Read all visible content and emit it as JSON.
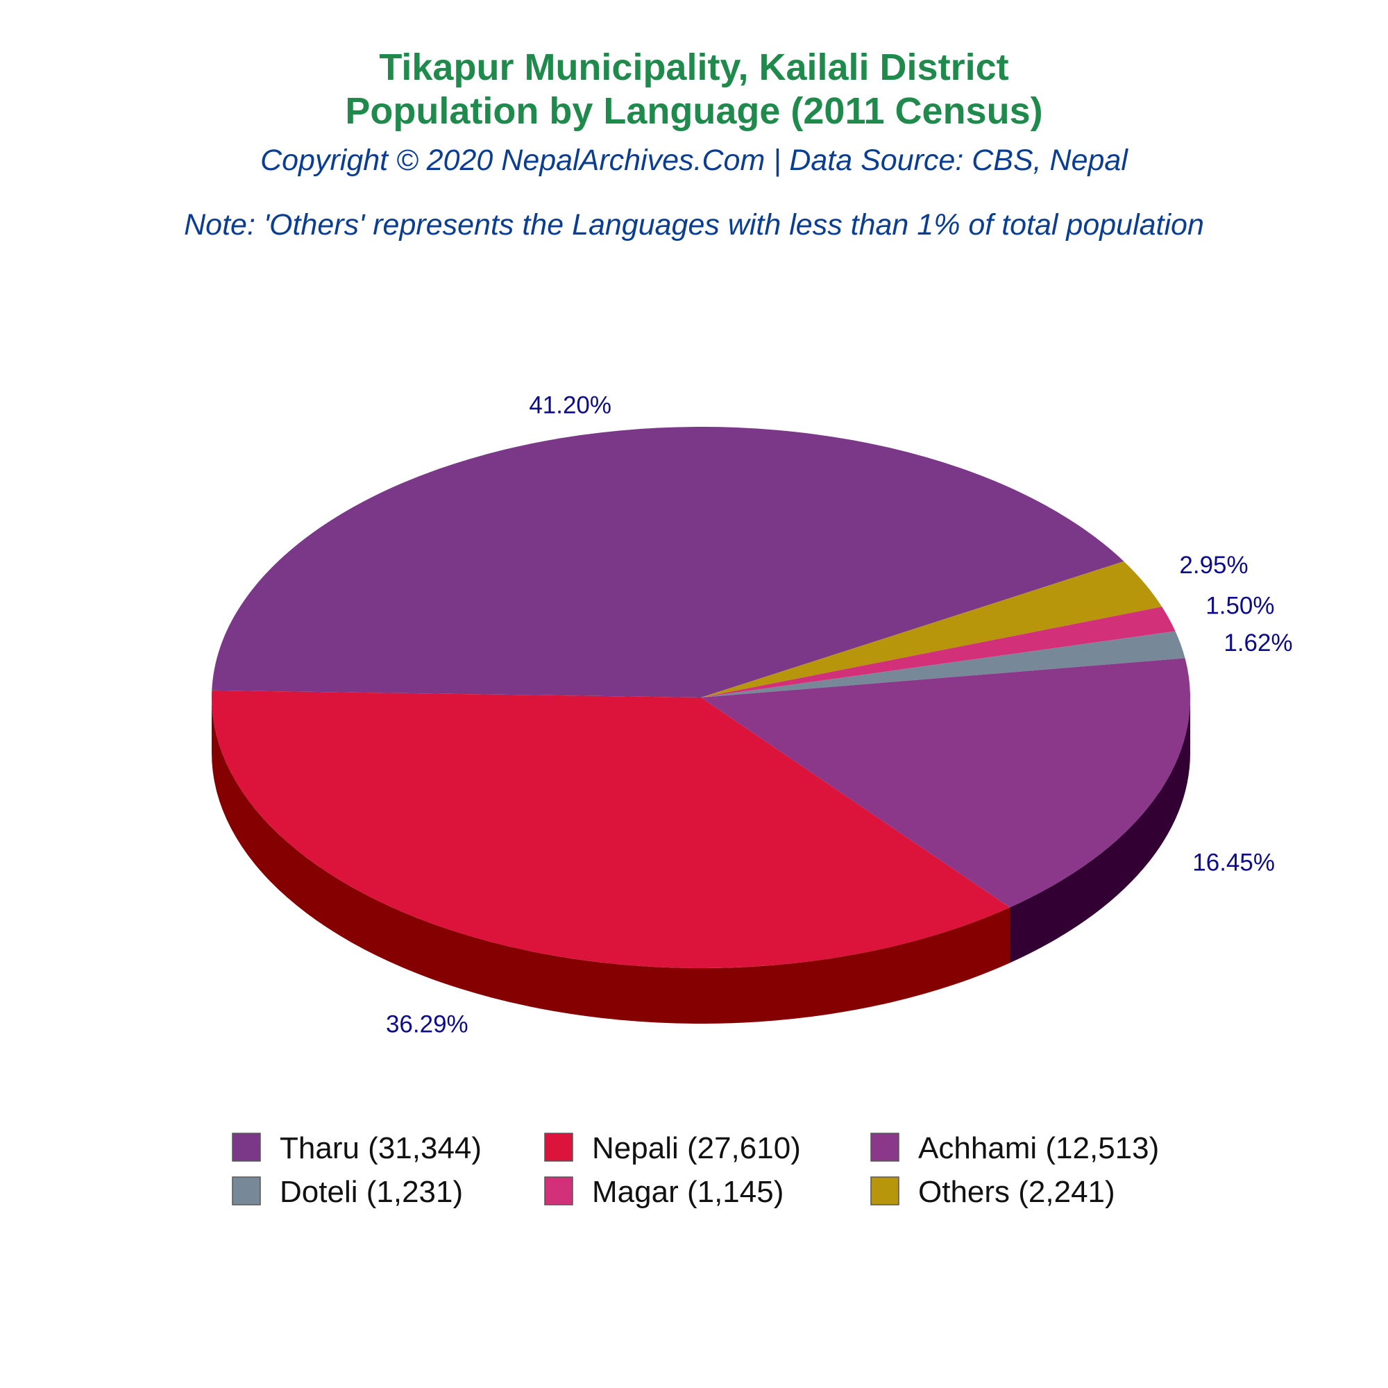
{
  "chart_data": {
    "type": "pie",
    "title": "Tikapur Municipality, Kailali District",
    "title_line2": "Population by Language (2011 Census)",
    "subtitle": "Copyright © 2020 NepalArchives.Com | Data Source: CBS, Nepal",
    "note": "Note: 'Others' represents the Languages with less than 1% of total population",
    "legend_position": "bottom",
    "slices": [
      {
        "label": "Tharu (31,344)",
        "value": 31344,
        "percent_label": "41.20%",
        "color": "#7b3889",
        "side_color": "#3b0f45"
      },
      {
        "label": "Nepali (27,610)",
        "value": 27610,
        "percent_label": "36.29%",
        "color": "#dc143c",
        "side_color": "#850000"
      },
      {
        "label": "Achhami (12,513)",
        "value": 12513,
        "percent_label": "16.45%",
        "color": "#8b388b",
        "side_color": "#330033"
      },
      {
        "label": "Doteli (1,231)",
        "value": 1231,
        "percent_label": "1.62%",
        "color": "#778899",
        "side_color": "#3e4a55"
      },
      {
        "label": "Magar (1,145)",
        "value": 1145,
        "percent_label": "1.50%",
        "color": "#d2317a",
        "side_color": "#6e1640"
      },
      {
        "label": "Others (2,241)",
        "value": 2241,
        "percent_label": "2.95%",
        "color": "#b8960b",
        "side_color": "#5e4c05"
      }
    ]
  }
}
